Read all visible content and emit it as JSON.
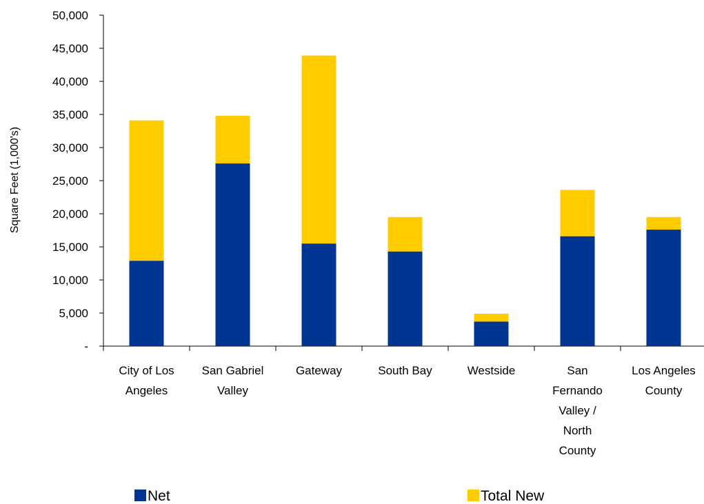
{
  "chart_data": {
    "type": "bar",
    "stacked": true,
    "ylabel": "Square Feet (1,000's)",
    "xlabel": "",
    "ylim": [
      0,
      50000
    ],
    "yticks": [
      0,
      5000,
      10000,
      15000,
      20000,
      25000,
      30000,
      35000,
      40000,
      45000,
      50000
    ],
    "ytick_labels": [
      "-",
      "5,000",
      "10,000",
      "15,000",
      "20,000",
      "25,000",
      "30,000",
      "35,000",
      "40,000",
      "45,000",
      "50,000"
    ],
    "categories": [
      [
        "City of Los",
        "Angeles"
      ],
      [
        "San Gabriel",
        "Valley"
      ],
      [
        "Gateway"
      ],
      [
        "South Bay"
      ],
      [
        "Westside"
      ],
      [
        "San",
        "Fernando",
        "Valley /",
        "North",
        "County"
      ],
      [
        "Los Angeles",
        "County"
      ]
    ],
    "series": [
      {
        "name": "Net",
        "color": "#003591",
        "values": [
          12900,
          27600,
          15500,
          14300,
          3700,
          16600,
          17600
        ]
      },
      {
        "name": "Total New",
        "color": "#ffcc00",
        "values": [
          21200,
          7200,
          28400,
          5200,
          1200,
          7000,
          1900
        ]
      }
    ],
    "grid": false,
    "legend_position": "bottom"
  }
}
